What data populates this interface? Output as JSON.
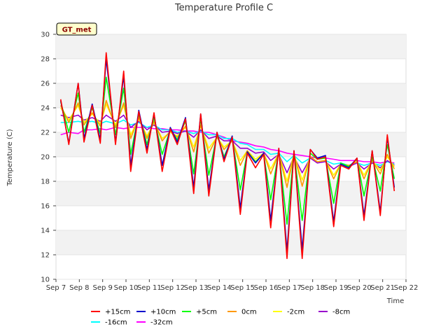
{
  "chart_data": {
    "type": "line",
    "title": "Temperature Profile C",
    "xlabel": "Time",
    "ylabel": "Temperature (C)",
    "badge": "GT_met",
    "x_ticks": [
      "Sep 7",
      "Sep 8",
      "Sep 9",
      "Sep 10",
      "Sep 11",
      "Sep 12",
      "Sep 13",
      "Sep 14",
      "Sep 15",
      "Sep 16",
      "Sep 17",
      "Sep 18",
      "Sep 19",
      "Sep 20",
      "Sep 21",
      "Sep 22"
    ],
    "x_range": [
      7,
      22
    ],
    "ylim": [
      10,
      30
    ],
    "y_ticks": [
      10,
      12,
      14,
      16,
      18,
      20,
      22,
      24,
      26,
      28,
      30
    ],
    "grid": "horizontal bands",
    "legend_position": "bottom-center",
    "series": [
      {
        "name": "+15cm",
        "color": "#ff0000",
        "x": [
          7.2,
          7.55,
          7.95,
          8.2,
          8.55,
          8.9,
          9.15,
          9.55,
          9.9,
          10.2,
          10.55,
          10.9,
          11.2,
          11.55,
          11.9,
          12.2,
          12.55,
          12.9,
          13.2,
          13.55,
          13.9,
          14.2,
          14.55,
          14.9,
          15.2,
          15.55,
          15.9,
          16.2,
          16.55,
          16.9,
          17.2,
          17.55,
          17.9,
          18.2,
          18.55,
          18.9,
          19.2,
          19.55,
          19.9,
          20.2,
          20.55,
          20.9,
          21.2,
          21.5
        ],
        "values": [
          24.7,
          21.0,
          26.0,
          21.2,
          24.2,
          21.1,
          28.5,
          21.0,
          27.0,
          18.8,
          23.7,
          20.3,
          23.6,
          18.8,
          22.3,
          21.0,
          23.1,
          17.0,
          23.5,
          16.8,
          22.0,
          19.6,
          21.6,
          15.3,
          20.3,
          19.1,
          20.2,
          14.2,
          20.7,
          11.7,
          20.5,
          11.7,
          20.6,
          19.8,
          20.0,
          14.3,
          19.3,
          19.0,
          19.9,
          14.8,
          20.5,
          15.2,
          21.8,
          17.2
        ]
      },
      {
        "name": "+10cm",
        "color": "#0000cc",
        "x": [
          7.2,
          7.55,
          7.95,
          8.2,
          8.55,
          8.9,
          9.15,
          9.55,
          9.9,
          10.2,
          10.55,
          10.9,
          11.2,
          11.55,
          11.9,
          12.2,
          12.55,
          12.9,
          13.2,
          13.55,
          13.9,
          14.2,
          14.55,
          14.9,
          15.2,
          15.55,
          15.9,
          16.2,
          16.55,
          16.9,
          17.2,
          17.55,
          17.9,
          18.2,
          18.55,
          18.9,
          19.2,
          19.55,
          19.9,
          20.2,
          20.55,
          20.9,
          21.2,
          21.5
        ],
        "values": [
          24.6,
          21.1,
          26.0,
          21.5,
          24.3,
          21.4,
          28.0,
          21.2,
          26.6,
          19.3,
          23.8,
          20.6,
          23.5,
          19.3,
          22.4,
          21.2,
          23.2,
          17.5,
          23.5,
          17.3,
          22.0,
          19.8,
          21.7,
          15.8,
          20.4,
          19.5,
          20.3,
          14.8,
          20.7,
          12.3,
          20.5,
          12.4,
          20.6,
          19.9,
          20.1,
          14.7,
          19.4,
          19.1,
          19.9,
          15.2,
          20.5,
          15.5,
          21.6,
          17.5
        ]
      },
      {
        "name": "+5cm",
        "color": "#00ff00",
        "x": [
          7.2,
          7.55,
          7.95,
          8.2,
          8.55,
          8.9,
          9.15,
          9.55,
          9.9,
          10.2,
          10.55,
          10.9,
          11.2,
          11.55,
          11.9,
          12.2,
          12.55,
          12.9,
          13.2,
          13.55,
          13.9,
          14.2,
          14.55,
          14.9,
          15.2,
          15.55,
          15.9,
          16.2,
          16.55,
          16.9,
          17.2,
          17.55,
          17.9,
          18.2,
          18.55,
          18.9,
          19.2,
          19.55,
          19.9,
          20.2,
          20.55,
          20.9,
          21.2,
          21.5
        ],
        "values": [
          24.5,
          22.0,
          25.2,
          22.0,
          24.0,
          21.9,
          26.5,
          21.8,
          25.6,
          20.2,
          23.5,
          21.0,
          23.2,
          20.2,
          22.2,
          21.4,
          22.9,
          18.6,
          23.1,
          18.5,
          21.8,
          20.0,
          21.5,
          17.3,
          20.4,
          19.6,
          20.2,
          16.5,
          20.5,
          14.5,
          20.4,
          14.8,
          20.3,
          19.8,
          19.9,
          16.2,
          19.5,
          19.2,
          19.8,
          16.8,
          20.0,
          17.2,
          21.0,
          18.2
        ]
      },
      {
        "name": "0cm",
        "color": "#ff9900",
        "x": [
          7.2,
          7.55,
          7.95,
          8.2,
          8.55,
          8.9,
          9.15,
          9.55,
          9.9,
          10.2,
          10.55,
          10.9,
          11.2,
          11.55,
          11.9,
          12.2,
          12.55,
          12.9,
          13.2,
          13.55,
          13.9,
          14.2,
          14.55,
          14.9,
          15.2,
          15.55,
          15.9,
          16.2,
          16.55,
          16.9,
          17.2,
          17.55,
          17.9,
          18.2,
          18.55,
          18.9,
          19.2,
          19.55,
          19.9,
          20.2,
          20.55,
          20.9,
          21.2,
          21.5
        ],
        "values": [
          24.2,
          22.8,
          24.4,
          22.6,
          23.6,
          22.5,
          24.6,
          22.4,
          24.4,
          21.5,
          23.2,
          21.5,
          22.9,
          21.3,
          22.1,
          21.6,
          22.5,
          20.4,
          22.6,
          20.3,
          21.6,
          20.6,
          21.3,
          19.3,
          20.5,
          19.6,
          20.3,
          18.6,
          20.3,
          17.5,
          20.2,
          17.6,
          20.0,
          19.6,
          19.7,
          18.2,
          19.4,
          19.3,
          19.6,
          18.2,
          19.7,
          18.6,
          20.2,
          19.0
        ]
      },
      {
        "name": "-2cm",
        "color": "#ffff00",
        "x": [
          7.2,
          7.55,
          7.95,
          8.2,
          8.55,
          8.9,
          9.15,
          9.55,
          9.9,
          10.2,
          10.55,
          10.9,
          11.2,
          11.55,
          11.9,
          12.2,
          12.55,
          12.9,
          13.2,
          13.55,
          13.9,
          14.2,
          14.55,
          14.9,
          15.2,
          15.55,
          15.9,
          16.2,
          16.55,
          16.9,
          17.2,
          17.55,
          17.9,
          18.2,
          18.55,
          18.9,
          19.2,
          19.55,
          19.9,
          20.2,
          20.55,
          20.9,
          21.2,
          21.5
        ],
        "values": [
          24.0,
          23.0,
          24.2,
          22.8,
          23.5,
          22.7,
          24.3,
          22.6,
          24.2,
          21.8,
          23.1,
          21.7,
          22.8,
          21.5,
          22.0,
          21.7,
          22.4,
          20.8,
          22.5,
          20.7,
          21.6,
          20.8,
          21.3,
          19.7,
          20.5,
          19.8,
          20.3,
          19.0,
          20.3,
          18.0,
          20.2,
          18.1,
          20.0,
          19.6,
          19.7,
          18.5,
          19.4,
          19.3,
          19.6,
          18.5,
          19.7,
          18.9,
          20.0,
          19.2
        ]
      },
      {
        "name": "-8cm",
        "color": "#9900cc",
        "x": [
          7.2,
          7.55,
          7.95,
          8.2,
          8.55,
          8.9,
          9.15,
          9.55,
          9.9,
          10.2,
          10.55,
          10.9,
          11.2,
          11.55,
          11.9,
          12.2,
          12.55,
          12.9,
          13.2,
          13.55,
          13.9,
          14.2,
          14.55,
          14.9,
          15.2,
          15.55,
          15.9,
          16.2,
          16.55,
          16.9,
          17.2,
          17.55,
          17.9,
          18.2,
          18.55,
          18.9,
          19.2,
          19.55,
          19.9,
          20.2,
          20.55,
          20.9,
          21.2,
          21.5
        ],
        "values": [
          23.4,
          23.2,
          23.4,
          23.0,
          23.2,
          22.9,
          23.4,
          22.9,
          23.4,
          22.4,
          22.9,
          22.2,
          22.6,
          22.0,
          22.1,
          21.9,
          22.1,
          21.6,
          22.2,
          21.5,
          21.7,
          21.3,
          21.3,
          20.7,
          20.7,
          20.3,
          20.4,
          19.7,
          20.2,
          18.7,
          20.0,
          18.7,
          19.9,
          19.5,
          19.6,
          19.0,
          19.4,
          19.2,
          19.5,
          19.0,
          19.5,
          19.1,
          19.7,
          19.3
        ]
      },
      {
        "name": "-16cm",
        "color": "#00ffff",
        "x": [
          7.2,
          7.55,
          7.95,
          8.2,
          8.55,
          8.9,
          9.15,
          9.55,
          9.9,
          10.2,
          10.55,
          10.9,
          11.2,
          11.55,
          11.9,
          12.2,
          12.55,
          12.9,
          13.2,
          13.55,
          13.9,
          14.2,
          14.55,
          14.9,
          15.2,
          15.55,
          15.9,
          16.2,
          16.55,
          16.9,
          17.2,
          17.55,
          17.9,
          18.2,
          18.55,
          18.9,
          19.2,
          19.55,
          19.9,
          20.2,
          20.55,
          20.9,
          21.2,
          21.5
        ],
        "values": [
          22.8,
          22.8,
          22.9,
          22.8,
          22.9,
          22.7,
          22.9,
          22.7,
          23.0,
          22.6,
          22.8,
          22.4,
          22.6,
          22.2,
          22.2,
          22.0,
          22.1,
          21.9,
          22.1,
          21.8,
          21.8,
          21.5,
          21.5,
          21.1,
          21.0,
          20.6,
          20.6,
          20.2,
          20.3,
          19.6,
          20.1,
          19.5,
          19.9,
          19.6,
          19.7,
          19.4,
          19.5,
          19.3,
          19.5,
          19.3,
          19.5,
          19.3,
          19.6,
          19.4
        ]
      },
      {
        "name": "-32cm",
        "color": "#ff00ff",
        "x": [
          7.2,
          7.55,
          7.95,
          8.2,
          8.55,
          8.9,
          9.15,
          9.55,
          9.9,
          10.2,
          10.55,
          10.9,
          11.2,
          11.55,
          11.9,
          12.2,
          12.55,
          12.9,
          13.2,
          13.55,
          13.9,
          14.2,
          14.55,
          14.9,
          15.2,
          15.55,
          15.9,
          16.2,
          16.55,
          16.9,
          17.2,
          17.55,
          17.9,
          18.2,
          18.55,
          18.9,
          19.2,
          19.55,
          19.9,
          20.2,
          20.55,
          20.9,
          21.2,
          21.5
        ],
        "values": [
          21.8,
          22.0,
          21.9,
          22.2,
          22.2,
          22.3,
          22.2,
          22.4,
          22.3,
          22.4,
          22.4,
          22.4,
          22.3,
          22.3,
          22.2,
          22.2,
          22.1,
          22.1,
          22.0,
          22.0,
          21.8,
          21.6,
          21.3,
          21.2,
          21.1,
          20.9,
          20.8,
          20.6,
          20.5,
          20.3,
          20.2,
          20.1,
          20.0,
          19.9,
          19.9,
          19.8,
          19.7,
          19.7,
          19.7,
          19.6,
          19.6,
          19.5,
          19.6,
          19.5
        ]
      }
    ]
  }
}
